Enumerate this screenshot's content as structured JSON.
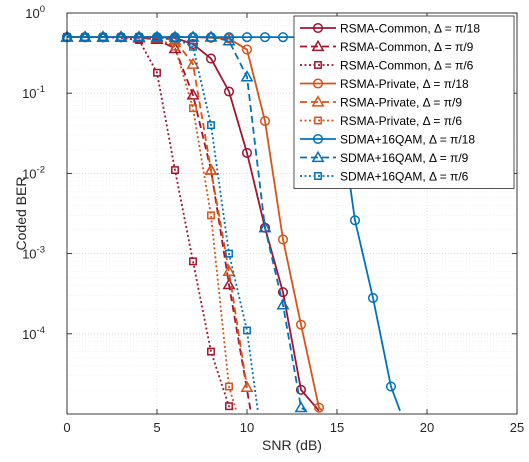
{
  "chart_data": {
    "type": "line",
    "xlabel": "SNR (dB)",
    "ylabel": "Coded BER",
    "xlim": [
      0,
      25
    ],
    "ylim": [
      1e-05,
      1
    ],
    "yscale": "log",
    "grid": true,
    "legend_position": "top-right",
    "xticks": [
      0,
      5,
      10,
      15,
      20,
      25
    ],
    "xtick_labels": [
      "0",
      "5",
      "10",
      "15",
      "20",
      "25"
    ],
    "yticks": [
      0.0001,
      0.001,
      0.01,
      0.1,
      1
    ],
    "ytick_labels": [
      {
        "base": "10",
        "exp": "-4"
      },
      {
        "base": "10",
        "exp": "-3"
      },
      {
        "base": "10",
        "exp": "-2"
      },
      {
        "base": "10",
        "exp": "-1"
      },
      {
        "base": "10",
        "exp": "0"
      }
    ],
    "series": [
      {
        "name": "RSMA-Common, Δ = π/18",
        "color": "#a2142f",
        "dash": "solid",
        "marker": "circle",
        "x": [
          0,
          1,
          2,
          3,
          4,
          5,
          6,
          7,
          8,
          9,
          10,
          11,
          12,
          13,
          14
        ],
        "y": [
          0.5,
          0.5,
          0.5,
          0.5,
          0.5,
          0.5,
          0.49,
          0.41,
          0.27,
          0.105,
          0.018,
          0.0021,
          0.00033,
          2e-05,
          1.1e-05
        ]
      },
      {
        "name": "RSMA-Common, Δ = π/9",
        "color": "#a2142f",
        "dash": "dash",
        "marker": "triangle",
        "x": [
          0,
          1,
          2,
          3,
          4,
          5,
          6,
          7,
          8,
          9,
          10.2
        ],
        "y": [
          0.5,
          0.5,
          0.5,
          0.5,
          0.49,
          0.47,
          0.36,
          0.095,
          0.011,
          0.00041,
          1.1e-05
        ]
      },
      {
        "name": "RSMA-Common, Δ = π/6",
        "color": "#a2142f",
        "dash": "dot",
        "marker": "square",
        "x": [
          0,
          1,
          2,
          3,
          4,
          5,
          6,
          7,
          8,
          9,
          9.3
        ],
        "y": [
          0.5,
          0.5,
          0.5,
          0.49,
          0.46,
          0.18,
          0.011,
          0.0008,
          6e-05,
          1.25e-05,
          1.1e-05
        ]
      },
      {
        "name": "RSMA-Private, Δ = π/18",
        "color": "#d95319",
        "dash": "solid",
        "marker": "circle",
        "x": [
          0,
          1,
          2,
          3,
          4,
          5,
          6,
          7,
          8,
          9,
          10,
          11,
          12,
          13,
          14,
          14.2
        ],
        "y": [
          0.5,
          0.5,
          0.5,
          0.5,
          0.5,
          0.5,
          0.5,
          0.5,
          0.49,
          0.48,
          0.35,
          0.045,
          0.0015,
          0.00013,
          1.2e-05,
          1.1e-05
        ]
      },
      {
        "name": "RSMA-Private, Δ = π/9",
        "color": "#d95319",
        "dash": "dash",
        "marker": "triangle",
        "x": [
          0,
          1,
          2,
          3,
          4,
          5,
          6,
          7,
          8,
          9,
          10
        ],
        "y": [
          0.5,
          0.5,
          0.5,
          0.5,
          0.5,
          0.49,
          0.46,
          0.23,
          0.011,
          0.0006,
          2.15e-05
        ]
      },
      {
        "name": "RSMA-Private, Δ = π/6",
        "color": "#d95319",
        "dash": "dot",
        "marker": "square",
        "x": [
          0,
          1,
          2,
          3,
          4,
          5,
          6,
          7,
          8,
          9,
          9.4
        ],
        "y": [
          0.5,
          0.5,
          0.5,
          0.5,
          0.5,
          0.49,
          0.38,
          0.065,
          0.003,
          2.2e-05,
          1.1e-05
        ]
      },
      {
        "name": "SDMA+16QAM, Δ = π/18",
        "color": "#0072bd",
        "dash": "solid",
        "marker": "circle",
        "x": [
          0,
          1,
          2,
          3,
          4,
          5,
          6,
          7,
          8,
          9,
          10,
          11,
          12,
          13,
          14,
          15,
          16,
          17,
          18,
          18.5
        ],
        "y": [
          0.5,
          0.5,
          0.5,
          0.5,
          0.5,
          0.5,
          0.5,
          0.5,
          0.5,
          0.5,
          0.5,
          0.5,
          0.5,
          0.5,
          0.48,
          0.1,
          0.0026,
          0.00028,
          2.2e-05,
          1.1e-05
        ]
      },
      {
        "name": "SDMA+16QAM, Δ = π/9",
        "color": "#0072bd",
        "dash": "dash",
        "marker": "triangle",
        "x": [
          0,
          1,
          2,
          3,
          4,
          5,
          6,
          7,
          8,
          9,
          10,
          11,
          12,
          13,
          13.3
        ],
        "y": [
          0.5,
          0.5,
          0.5,
          0.5,
          0.5,
          0.5,
          0.5,
          0.5,
          0.5,
          0.45,
          0.16,
          0.0021,
          0.00023,
          1.2e-05,
          1.1e-05
        ]
      },
      {
        "name": "SDMA+16QAM, Δ = π/6",
        "color": "#0072bd",
        "dash": "dot",
        "marker": "square",
        "x": [
          0,
          1,
          2,
          3,
          4,
          5,
          6,
          7,
          8,
          9,
          10,
          10.6
        ],
        "y": [
          0.5,
          0.5,
          0.5,
          0.5,
          0.5,
          0.49,
          0.48,
          0.38,
          0.04,
          0.001,
          0.00011,
          1.1e-05
        ]
      }
    ]
  }
}
